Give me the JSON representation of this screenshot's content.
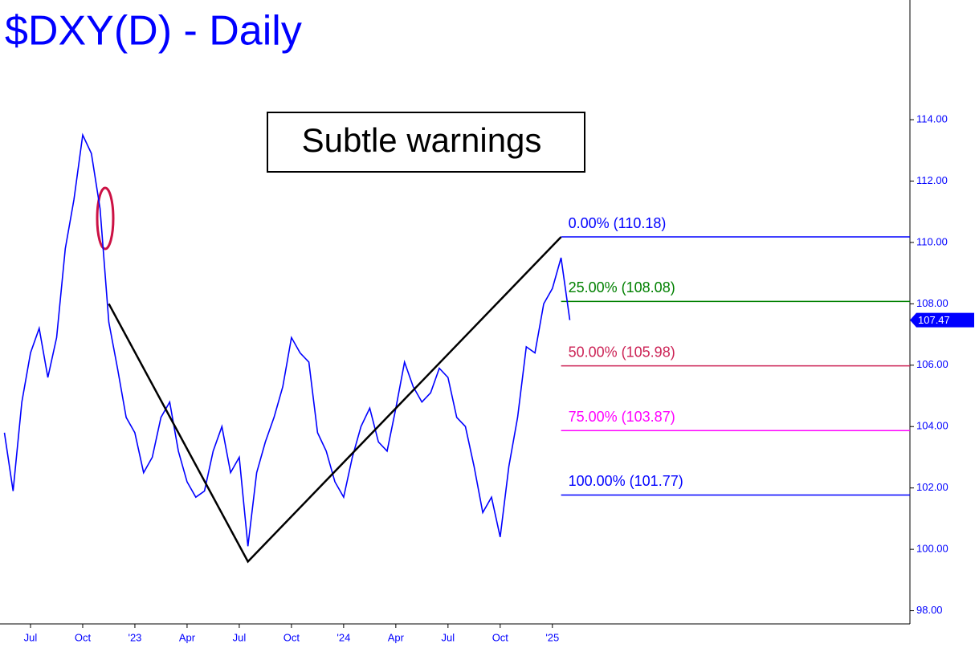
{
  "chart_data": {
    "type": "line",
    "title": "$DXY(D) - Daily",
    "annotation": "Subtle warnings",
    "color": "#0000ff",
    "categories": [
      null,
      null,
      null,
      "Jul",
      null,
      null,
      null,
      null,
      null,
      "Oct",
      null,
      null,
      null,
      null,
      null,
      "'23",
      null,
      null,
      null,
      null,
      null,
      "Apr",
      null,
      null,
      null,
      null,
      null,
      "Jul",
      null,
      null,
      null,
      null,
      null,
      "Oct",
      null,
      null,
      null,
      null,
      null,
      "'24",
      null,
      null,
      null,
      null,
      null,
      "Apr",
      null,
      null,
      null,
      null,
      null,
      "Jul",
      null,
      null,
      null,
      null,
      null,
      "Oct",
      null,
      null,
      null,
      null,
      null,
      "'25",
      null,
      null
    ],
    "values": [
      103.8,
      101.9,
      104.8,
      106.4,
      107.2,
      105.6,
      106.9,
      109.8,
      111.4,
      113.5,
      112.9,
      111.1,
      107.4,
      105.9,
      104.3,
      103.8,
      102.5,
      103.0,
      104.3,
      104.8,
      103.2,
      102.2,
      101.7,
      101.9,
      103.2,
      104.0,
      102.5,
      103.0,
      100.1,
      102.5,
      103.5,
      104.3,
      105.3,
      106.9,
      106.4,
      106.1,
      103.8,
      103.2,
      102.2,
      101.7,
      103.0,
      104.0,
      104.6,
      103.5,
      103.2,
      104.6,
      106.1,
      105.3,
      104.8,
      105.1,
      105.9,
      105.6,
      104.3,
      104.0,
      102.7,
      101.2,
      101.7,
      100.4,
      102.7,
      104.3,
      106.6,
      106.4,
      108.0,
      108.5,
      109.5,
      107.47
    ],
    "last_label": {
      "value": 107.47,
      "label": "107.47"
    },
    "ylim": [
      97.57,
      117.9
    ],
    "yticks": [
      {
        "value": 98,
        "label": "98.00"
      },
      {
        "value": 100,
        "label": "100.00"
      },
      {
        "value": 102,
        "label": "102.00"
      },
      {
        "value": 104,
        "label": "104.00"
      },
      {
        "value": 106,
        "label": "106.00"
      },
      {
        "value": 108,
        "label": "108.00"
      },
      {
        "value": 110,
        "label": "110.00"
      },
      {
        "value": 112,
        "label": "112.00"
      },
      {
        "value": 114,
        "label": "114.00"
      }
    ],
    "fib_levels": [
      {
        "value": 110.18,
        "label": "0.00% (110.18)",
        "color": "#0000ff"
      },
      {
        "value": 108.08,
        "label": "25.00% (108.08)",
        "color": "#008000"
      },
      {
        "value": 105.98,
        "label": "50.00% (105.98)",
        "color": "#cc2255"
      },
      {
        "value": 103.87,
        "label": "75.00% (103.87)",
        "color": "#ff00ff"
      },
      {
        "value": 101.77,
        "label": "100.00% (101.77)",
        "color": "#0000ff"
      }
    ],
    "zigzag": {
      "at": [
        12,
        28,
        64
      ],
      "values": [
        108.0,
        99.6,
        110.18
      ],
      "color": "#000000"
    }
  }
}
